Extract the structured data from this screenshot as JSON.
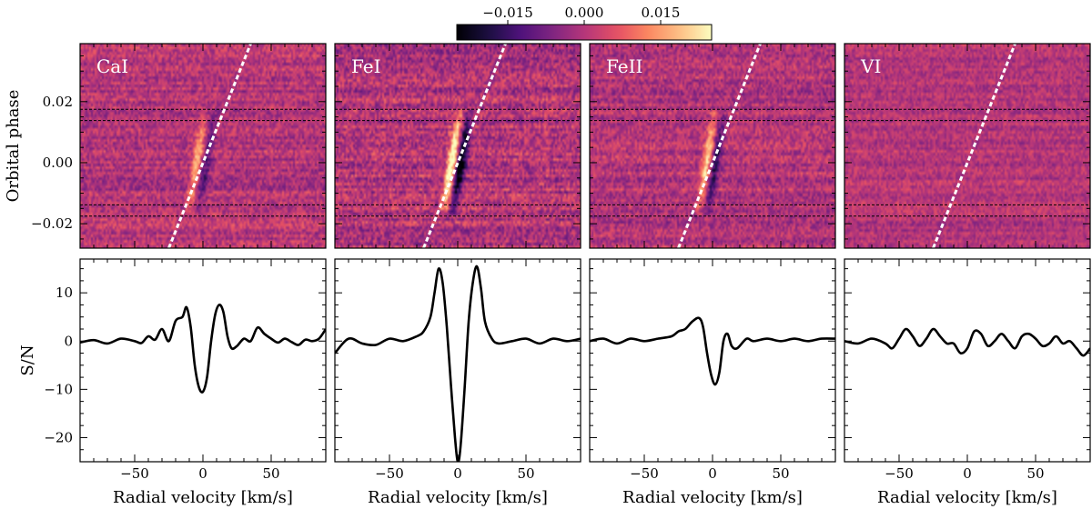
{
  "chart_data": {
    "type": "heatmap",
    "colorbar": {
      "cmap": "magma",
      "range": [
        -0.025,
        0.025
      ],
      "tick_values": [
        -0.015,
        0.0,
        0.015
      ],
      "tick_labels": [
        "−0.015",
        "0.000",
        "0.015"
      ]
    },
    "xlabel": "Radial velocity [km/s]",
    "top_ylabel": "Orbital phase",
    "bottom_ylabel": "S/N",
    "xlim": [
      -90,
      90
    ],
    "x_ticks": [
      -50,
      0,
      50
    ],
    "x_tick_labels": [
      "−50",
      "0",
      "50"
    ],
    "phase_ylim": [
      -0.028,
      0.039
    ],
    "phase_ticks": [
      -0.02,
      0.0,
      0.02
    ],
    "phase_tick_labels": [
      "−0.02",
      "0.00",
      "0.02"
    ],
    "sn_ylim": [
      -25,
      17
    ],
    "sn_ticks": [
      -20,
      -10,
      0,
      10
    ],
    "sn_tick_labels": [
      "−20",
      "−10",
      "0",
      "10"
    ],
    "transit_contact_phases": [
      0.0175,
      0.0138,
      -0.0138,
      -0.0175
    ],
    "planet_track": {
      "phase": [
        -0.028,
        0.039
      ],
      "rv": [
        -25,
        35
      ]
    },
    "panels": [
      {
        "species": "CaI",
        "noise_amp": 1.0,
        "map_signal": {
          "center": -4.5,
          "width": 3.2,
          "amp": 0.018,
          "blue_offset": 7,
          "blue_amp": -0.012
        },
        "sn_profile": {
          "rv": [
            -90,
            -80,
            -70,
            -60,
            -50,
            -45,
            -40,
            -35,
            -30,
            -25,
            -20,
            -15,
            -12,
            -9,
            -6,
            -3,
            0,
            3,
            6,
            9,
            12,
            15,
            18,
            21,
            25,
            30,
            35,
            40,
            45,
            50,
            55,
            60,
            65,
            70,
            75,
            80,
            85,
            90
          ],
          "sn": [
            -0.3,
            0.2,
            -0.5,
            0.5,
            0.0,
            -0.4,
            1.0,
            0.3,
            2.5,
            0.0,
            4.2,
            5.0,
            7.0,
            3.0,
            -5.0,
            -9.5,
            -10.5,
            -7.5,
            0.0,
            5.5,
            7.5,
            6.0,
            1.0,
            -1.5,
            -1.0,
            0.5,
            0.0,
            2.8,
            1.5,
            0.5,
            -0.3,
            0.5,
            -0.2,
            -0.8,
            0.3,
            0.0,
            0.5,
            2.5
          ]
        }
      },
      {
        "species": "FeI",
        "noise_amp": 1.2,
        "map_signal": {
          "center": -4.5,
          "width": 3.4,
          "amp": 0.03,
          "blue_offset": 7,
          "blue_amp": -0.028
        },
        "sn_profile": {
          "rv": [
            -90,
            -80,
            -70,
            -60,
            -50,
            -40,
            -30,
            -25,
            -20,
            -17,
            -14,
            -11,
            -8,
            -5,
            -2,
            0,
            2,
            5,
            8,
            11,
            14,
            17,
            20,
            25,
            30,
            40,
            50,
            60,
            70,
            80,
            90
          ],
          "sn": [
            -2.5,
            0.5,
            -0.5,
            -0.8,
            0.5,
            0.0,
            1.0,
            2.0,
            5.0,
            10.0,
            15.0,
            12.0,
            3.0,
            -9.0,
            -20.0,
            -25.0,
            -22.0,
            -10.0,
            4.0,
            12.0,
            15.5,
            11.0,
            4.0,
            0.5,
            -0.5,
            0.0,
            0.5,
            -0.5,
            0.5,
            0.0,
            0.5
          ]
        }
      },
      {
        "species": "FeII",
        "noise_amp": 1.0,
        "map_signal": {
          "center": -4.5,
          "width": 3.0,
          "amp": 0.02,
          "blue_offset": 7,
          "blue_amp": -0.017
        },
        "sn_profile": {
          "rv": [
            -90,
            -80,
            -70,
            -60,
            -50,
            -40,
            -30,
            -25,
            -20,
            -15,
            -10,
            -7,
            -4,
            -1,
            2,
            5,
            8,
            11,
            14,
            18,
            25,
            30,
            40,
            50,
            60,
            70,
            80,
            90
          ],
          "sn": [
            0.0,
            0.5,
            -0.5,
            0.5,
            0.0,
            0.5,
            1.0,
            2.0,
            2.5,
            4.0,
            4.8,
            3.0,
            -2.5,
            -7.0,
            -9.0,
            -6.5,
            0.0,
            1.5,
            -1.0,
            -1.5,
            0.5,
            0.0,
            0.5,
            0.0,
            0.5,
            0.0,
            0.5,
            0.5
          ]
        }
      },
      {
        "species": "VI",
        "noise_amp": 0.8,
        "map_signal": {
          "center": -4.5,
          "width": 3.0,
          "amp": 0.0,
          "blue_offset": 7,
          "blue_amp": 0.0
        },
        "sn_profile": {
          "rv": [
            -90,
            -80,
            -70,
            -60,
            -55,
            -50,
            -45,
            -40,
            -35,
            -30,
            -25,
            -20,
            -15,
            -10,
            -5,
            0,
            5,
            10,
            15,
            20,
            25,
            30,
            35,
            40,
            45,
            50,
            55,
            60,
            65,
            70,
            75,
            80,
            85,
            90
          ],
          "sn": [
            0.0,
            -0.5,
            0.5,
            -0.5,
            -1.5,
            0.5,
            2.5,
            1.0,
            -1.0,
            0.5,
            2.5,
            1.0,
            -0.5,
            -0.5,
            -2.5,
            -1.5,
            2.0,
            1.5,
            -1.0,
            0.0,
            1.5,
            0.0,
            -1.5,
            1.0,
            1.5,
            0.5,
            -1.0,
            -0.5,
            1.0,
            -0.5,
            0.0,
            -1.5,
            -3.0,
            -1.5
          ]
        }
      }
    ]
  }
}
